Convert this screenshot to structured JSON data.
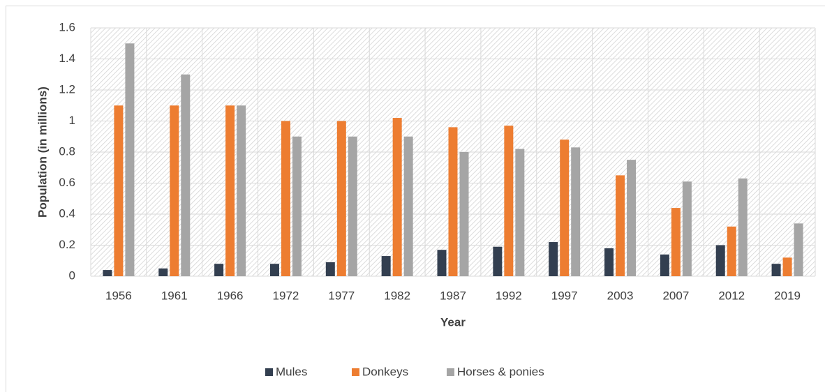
{
  "chart_data": {
    "type": "bar",
    "x_label": "Year",
    "y_label": "Population (in millions)",
    "categories": [
      "1956",
      "1961",
      "1966",
      "1972",
      "1977",
      "1982",
      "1987",
      "1992",
      "1997",
      "2003",
      "2007",
      "2012",
      "2019"
    ],
    "series": [
      {
        "name": "Mules",
        "color": "#333f50",
        "values": [
          0.04,
          0.05,
          0.08,
          0.08,
          0.09,
          0.13,
          0.17,
          0.19,
          0.22,
          0.18,
          0.14,
          0.2,
          0.08
        ]
      },
      {
        "name": "Donkeys",
        "color": "#ed7d31",
        "values": [
          1.1,
          1.1,
          1.1,
          1.0,
          1.0,
          1.02,
          0.96,
          0.97,
          0.88,
          0.65,
          0.44,
          0.32,
          0.12
        ]
      },
      {
        "name": "Horses & ponies",
        "color": "#a5a5a5",
        "values": [
          1.5,
          1.3,
          1.1,
          0.9,
          0.9,
          0.9,
          0.8,
          0.82,
          0.83,
          0.75,
          0.61,
          0.63,
          0.34
        ]
      }
    ],
    "ylim": [
      0,
      1.6
    ],
    "yticks": [
      0,
      0.2,
      0.4,
      0.6,
      0.8,
      1,
      1.2,
      1.4,
      1.6
    ],
    "grid": true,
    "legend": "bottom"
  }
}
